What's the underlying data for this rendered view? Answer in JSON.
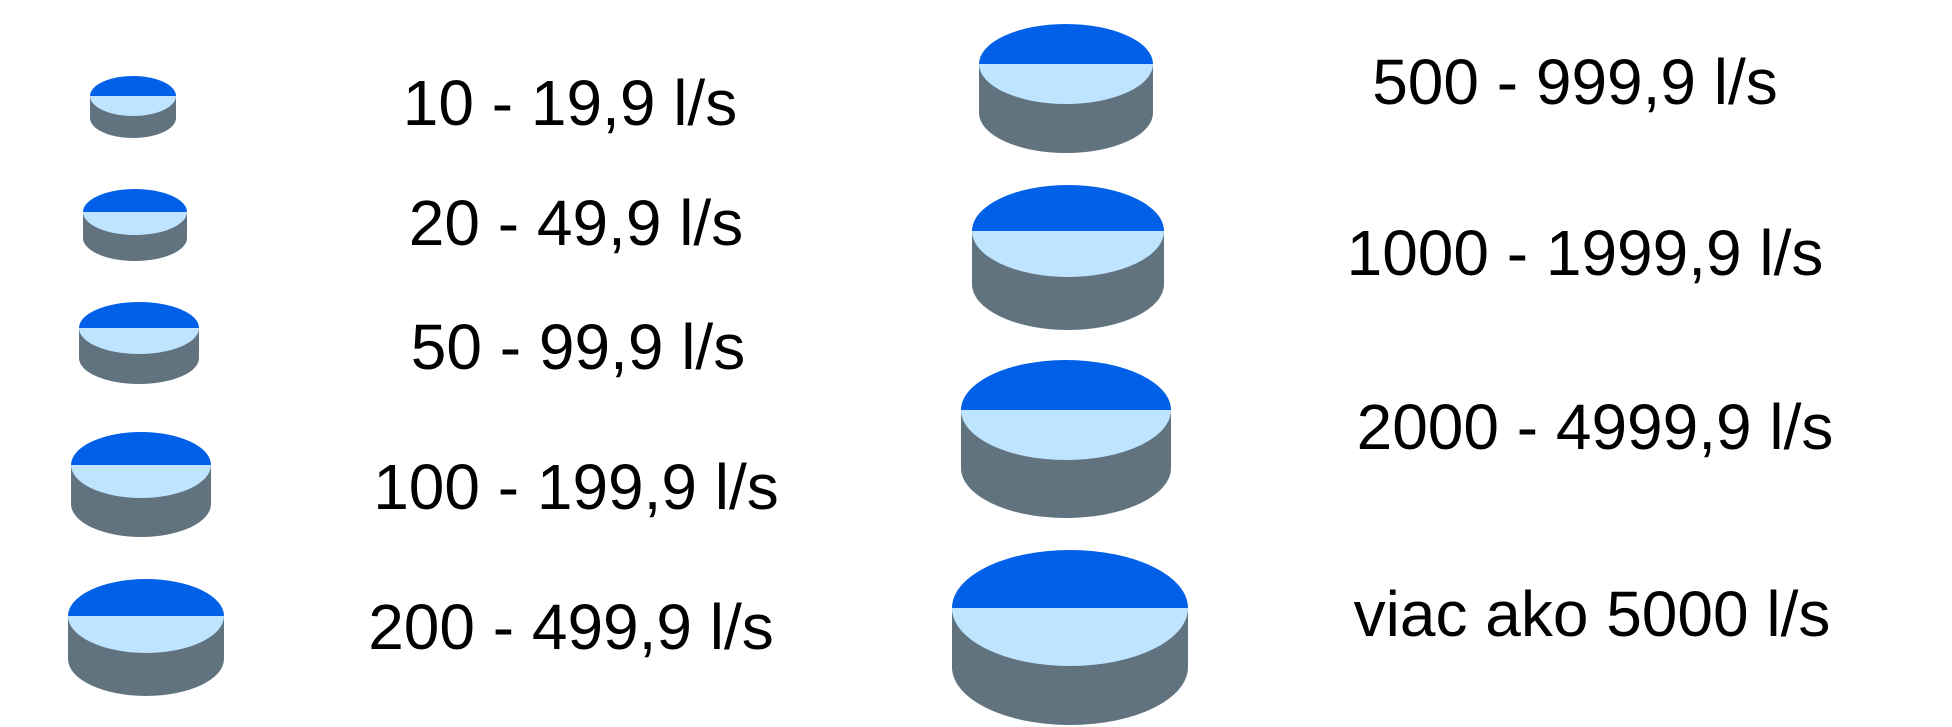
{
  "colors": {
    "top_dark": "#0060e8",
    "top_light": "#bfe4ff",
    "side": "#627380",
    "text": "#000000",
    "background": "#ffffff"
  },
  "legend": {
    "entries": [
      {
        "label": "10 - 19,9 l/s"
      },
      {
        "label": "20 - 49,9 l/s"
      },
      {
        "label": "50 - 99,9 l/s"
      },
      {
        "label": "100 - 199,9 l/s"
      },
      {
        "label": "200 - 499,9 l/s"
      },
      {
        "label": "500 - 999,9 l/s"
      },
      {
        "label": "1000 - 1999,9 l/s"
      },
      {
        "label": "2000 - 4999,9 l/s"
      },
      {
        "label": "viac ako 5000 l/s"
      }
    ]
  }
}
